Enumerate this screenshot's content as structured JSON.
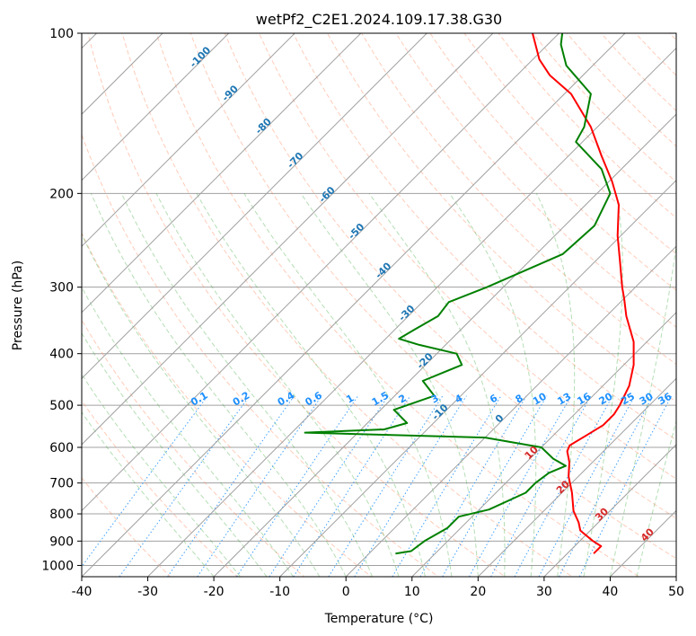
{
  "chart_data": {
    "type": "line",
    "subtype": "skew-t log-p diagram",
    "title": "wetPf2_C2E1.2024.109.17.38.G30",
    "xlabel": "Temperature (°C)",
    "ylabel": "Pressure (hPa)",
    "xlim": [
      -40,
      50
    ],
    "ylim": [
      1050,
      100
    ],
    "y_scale": "log",
    "grid": true,
    "x_ticks": [
      -40,
      -30,
      -20,
      -10,
      0,
      10,
      20,
      30,
      40,
      50
    ],
    "y_ticks": [
      100,
      200,
      300,
      400,
      500,
      600,
      700,
      800,
      900,
      1000
    ],
    "colors": {
      "temperature": "#ff0000",
      "dewpoint": "#008000",
      "dry_adiabat": "#ff7f50",
      "moist_adiabat": "#2ca02c",
      "mixing_ratio": "#1e90ff",
      "isotherm_label": "#1f77b4",
      "temp_label": "#d62728",
      "grid": "#a0a0a0"
    },
    "series": [
      {
        "name": "",
        "kind": "temperature",
        "points": [
          {
            "p": 950,
            "t": 34.0
          },
          {
            "p": 920,
            "t": 34.0
          },
          {
            "p": 900,
            "t": 32.0
          },
          {
            "p": 860,
            "t": 28.5
          },
          {
            "p": 830,
            "t": 27.0
          },
          {
            "p": 790,
            "t": 24.5
          },
          {
            "p": 730,
            "t": 21.5
          },
          {
            "p": 680,
            "t": 18.5
          },
          {
            "p": 640,
            "t": 16.5
          },
          {
            "p": 610,
            "t": 14.5
          },
          {
            "p": 595,
            "t": 14.0
          },
          {
            "p": 570,
            "t": 15.0
          },
          {
            "p": 545,
            "t": 16.0
          },
          {
            "p": 520,
            "t": 16.0
          },
          {
            "p": 500,
            "t": 15.5
          },
          {
            "p": 460,
            "t": 14.0
          },
          {
            "p": 420,
            "t": 11.5
          },
          {
            "p": 380,
            "t": 8.0
          },
          {
            "p": 340,
            "t": 3.0
          },
          {
            "p": 315,
            "t": 0.0
          },
          {
            "p": 300,
            "t": -2.0
          },
          {
            "p": 270,
            "t": -6.0
          },
          {
            "p": 240,
            "t": -10.5
          },
          {
            "p": 210,
            "t": -15.0
          },
          {
            "p": 190,
            "t": -19.5
          },
          {
            "p": 170,
            "t": -25.0
          },
          {
            "p": 150,
            "t": -31.0
          },
          {
            "p": 130,
            "t": -39.0
          },
          {
            "p": 120,
            "t": -45.0
          },
          {
            "p": 112,
            "t": -49.0
          },
          {
            "p": 100,
            "t": -54.0
          }
        ]
      },
      {
        "name": "",
        "kind": "dewpoint",
        "points": [
          {
            "p": 950,
            "t": 4.0
          },
          {
            "p": 940,
            "t": 6.0
          },
          {
            "p": 900,
            "t": 6.5
          },
          {
            "p": 850,
            "t": 8.0
          },
          {
            "p": 810,
            "t": 8.0
          },
          {
            "p": 785,
            "t": 11.5
          },
          {
            "p": 730,
            "t": 14.5
          },
          {
            "p": 700,
            "t": 14.5
          },
          {
            "p": 670,
            "t": 15.0
          },
          {
            "p": 650,
            "t": 16.5
          },
          {
            "p": 630,
            "t": 13.5
          },
          {
            "p": 600,
            "t": 10.0
          },
          {
            "p": 575,
            "t": 0.0
          },
          {
            "p": 563,
            "t": -28.0
          },
          {
            "p": 555,
            "t": -16.5
          },
          {
            "p": 540,
            "t": -14.0
          },
          {
            "p": 510,
            "t": -18.0
          },
          {
            "p": 480,
            "t": -14.0
          },
          {
            "p": 450,
            "t": -18.0
          },
          {
            "p": 420,
            "t": -14.5
          },
          {
            "p": 400,
            "t": -17.0
          },
          {
            "p": 385,
            "t": -24.0
          },
          {
            "p": 375,
            "t": -28.0
          },
          {
            "p": 360,
            "t": -27.0
          },
          {
            "p": 340,
            "t": -25.5
          },
          {
            "p": 320,
            "t": -26.0
          },
          {
            "p": 300,
            "t": -22.5
          },
          {
            "p": 260,
            "t": -16.0
          },
          {
            "p": 230,
            "t": -15.5
          },
          {
            "p": 200,
            "t": -18.0
          },
          {
            "p": 180,
            "t": -23.0
          },
          {
            "p": 160,
            "t": -31.0
          },
          {
            "p": 150,
            "t": -32.0
          },
          {
            "p": 130,
            "t": -36.0
          },
          {
            "p": 115,
            "t": -44.0
          },
          {
            "p": 105,
            "t": -48.0
          },
          {
            "p": 100,
            "t": -49.5
          }
        ]
      }
    ],
    "isotherm_labels": [
      -100,
      -90,
      -80,
      -70,
      -60,
      -50,
      -40,
      -30,
      -20,
      -10,
      0,
      10,
      20,
      30,
      40
    ],
    "mixing_ratio_labels": [
      "0.1",
      "0.2",
      "0.4",
      "0.6",
      "1",
      "1.5",
      "2",
      "3",
      "4",
      "6",
      "8",
      "10",
      "13",
      "16",
      "20",
      "25",
      "30",
      "36"
    ]
  }
}
